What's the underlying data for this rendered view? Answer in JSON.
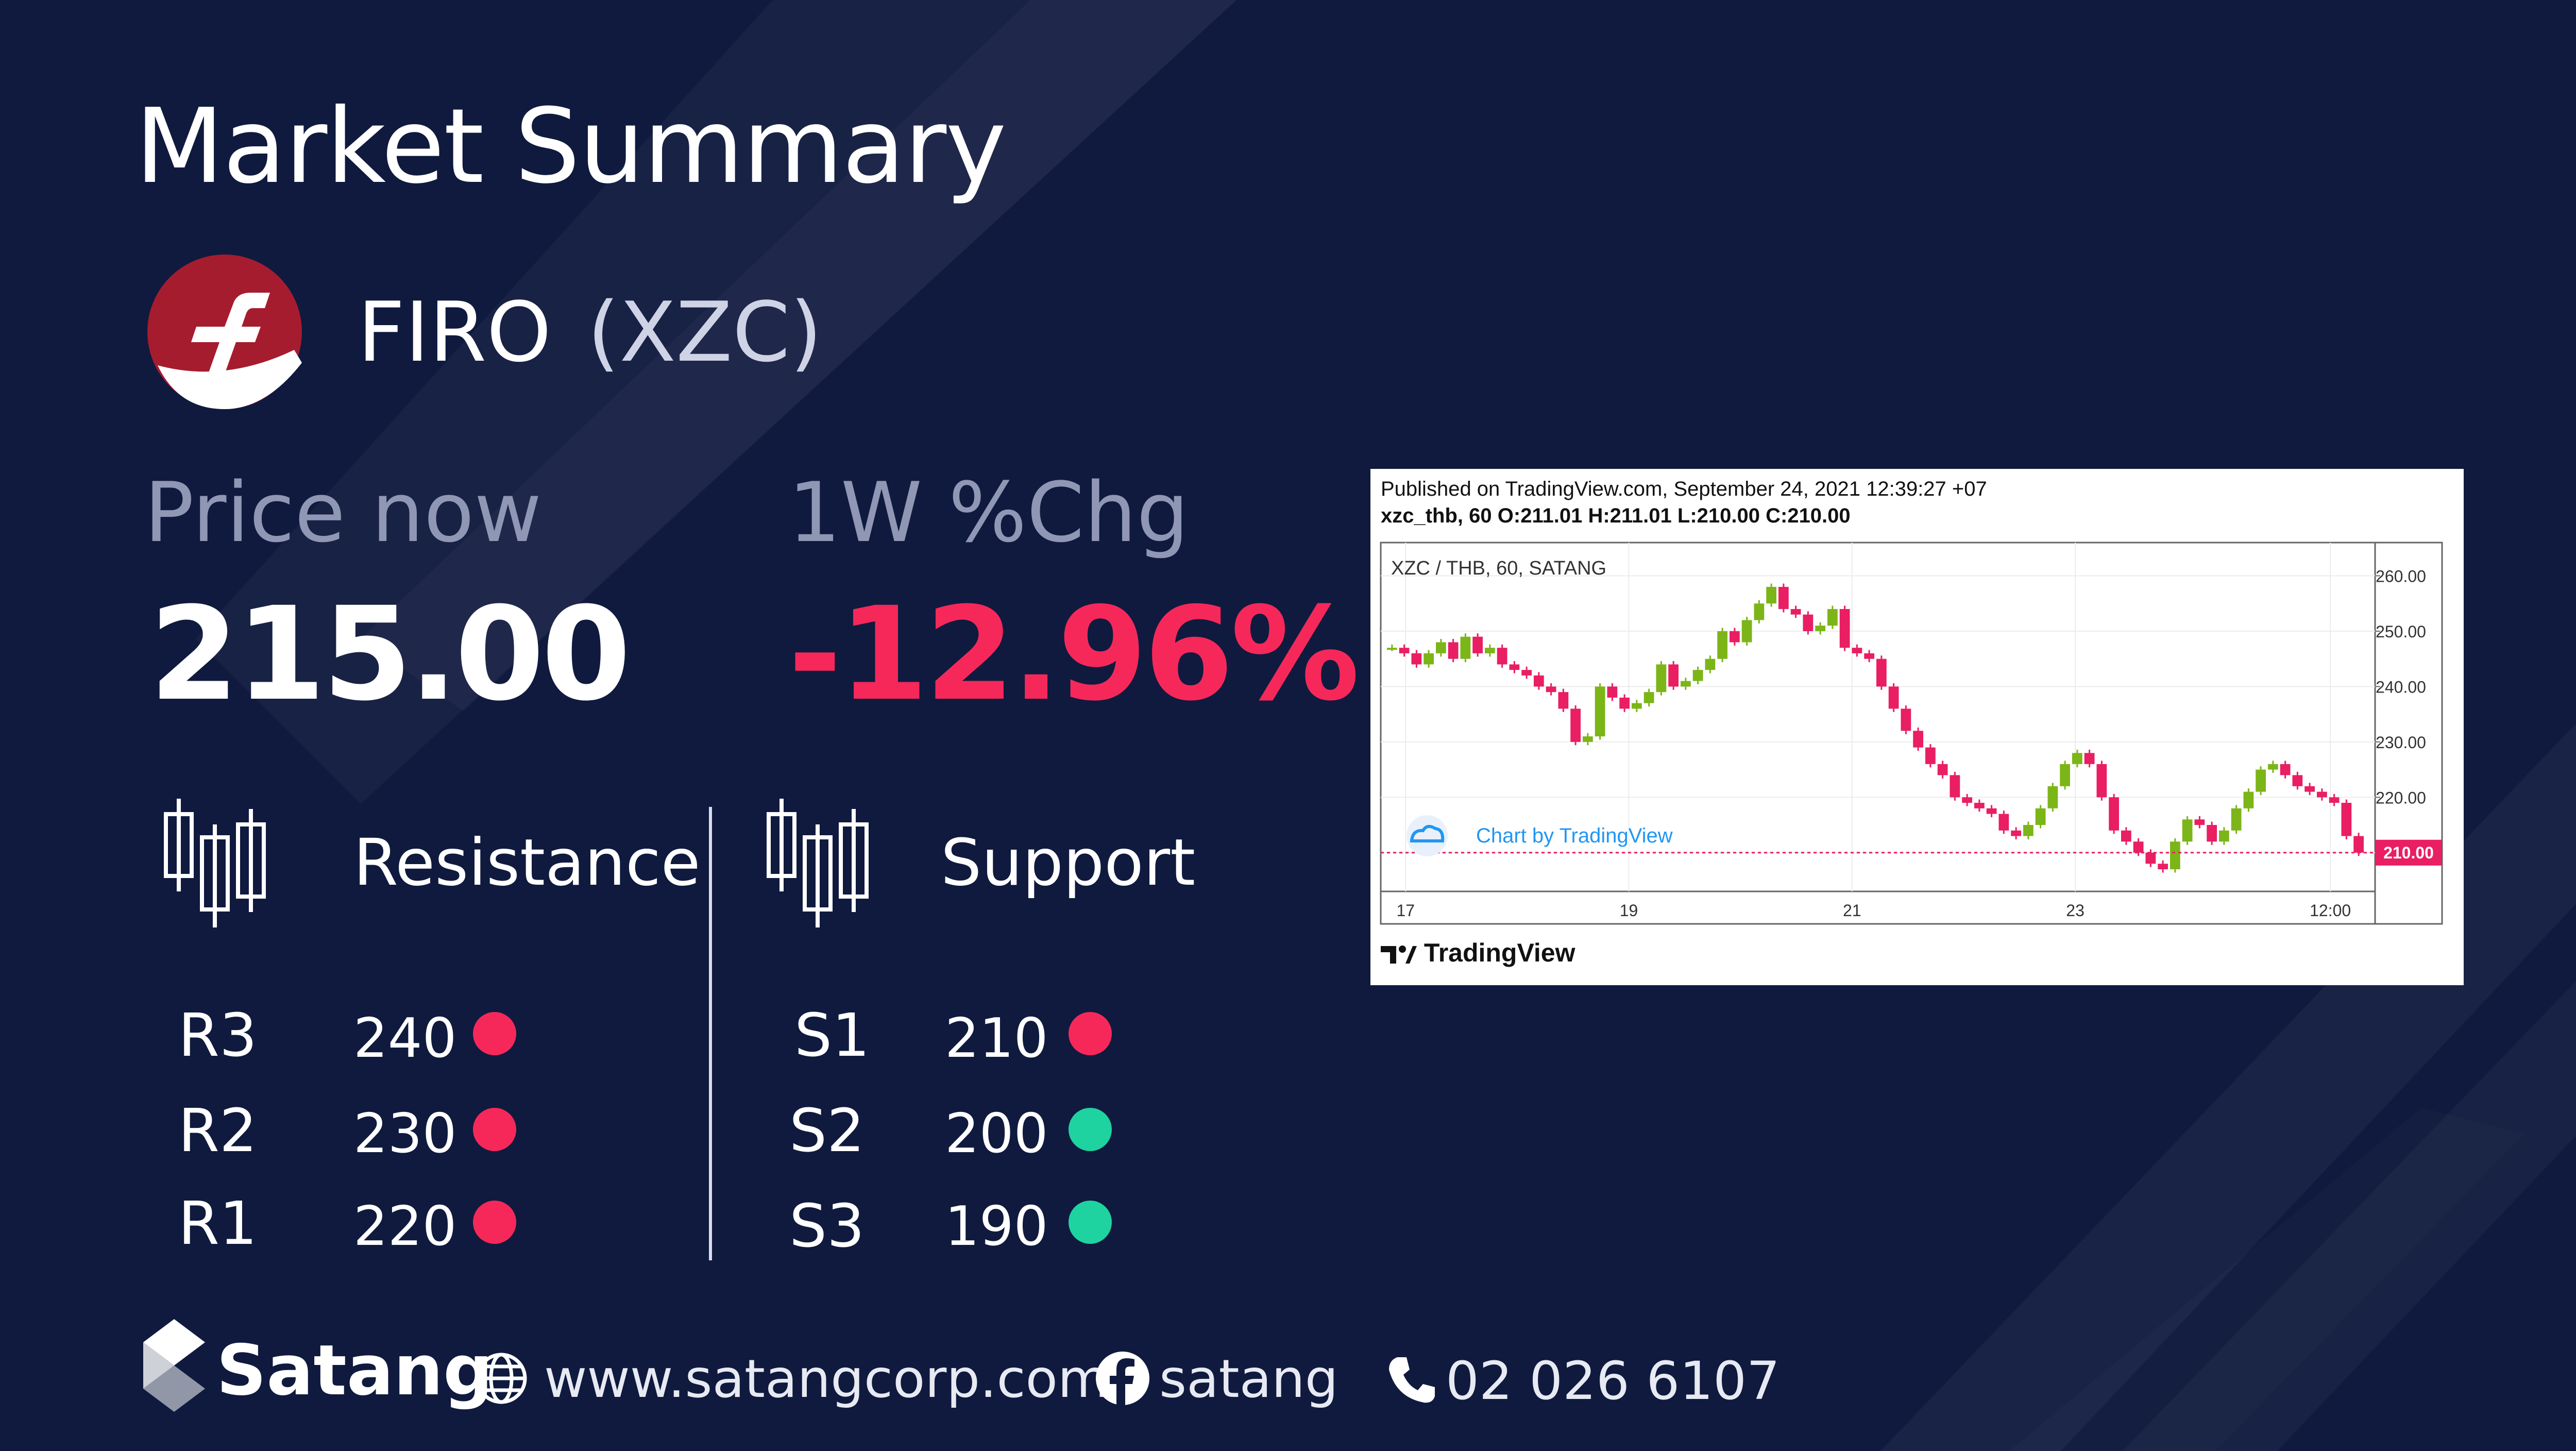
{
  "header": {
    "title": "Market Summary"
  },
  "coin": {
    "name": "FIRO",
    "symbol": "(XZC)",
    "logo_color": "#a61c2f"
  },
  "price": {
    "label": "Price now",
    "value": "215.00"
  },
  "change": {
    "label": "1W %Chg",
    "value": "-12.96%",
    "color": "#f6285a"
  },
  "resistance": {
    "title": "Resistance",
    "levels": [
      {
        "label": "R3",
        "value": "240",
        "status": "red"
      },
      {
        "label": "R2",
        "value": "230",
        "status": "red"
      },
      {
        "label": "R1",
        "value": "220",
        "status": "red"
      }
    ]
  },
  "support": {
    "title": "Support",
    "levels": [
      {
        "label": "S1",
        "value": "210",
        "status": "red"
      },
      {
        "label": "S2",
        "value": "200",
        "status": "green"
      },
      {
        "label": "S3",
        "value": "190",
        "status": "green"
      }
    ]
  },
  "colors": {
    "red": "#f6285a",
    "green": "#1ed3a0",
    "background": "#0f1a3e"
  },
  "chart": {
    "published": "Published on TradingView.com, September 24, 2021 12:39:27 +07",
    "ohlc": "xzc_thb, 60  O:211.01  H:211.01  L:210.00  C:210.00",
    "pair_label": "XZC / THB, 60, SATANG",
    "watermark": "Chart by TradingView",
    "footer": "TradingView",
    "last_price_label": "210.00"
  },
  "chart_data": {
    "type": "candlestick",
    "title": "XZC / THB, 60, SATANG",
    "x_ticks": [
      "17",
      "19",
      "21",
      "23",
      "12:00"
    ],
    "y_ticks": [
      "260.00",
      "250.00",
      "240.00",
      "230.00",
      "220.00",
      "210.00"
    ],
    "ylim": [
      203,
      266
    ],
    "last_price": 210.0,
    "ohlc": {
      "open": 211.01,
      "high": 211.01,
      "low": 210.0,
      "close": 210.0
    },
    "close_series": [
      247,
      246,
      244,
      246,
      248,
      245,
      249,
      246,
      247,
      244,
      243,
      242,
      240,
      239,
      236,
      230,
      231,
      240,
      238,
      236,
      237,
      239,
      244,
      240,
      241,
      243,
      245,
      250,
      248,
      252,
      255,
      258,
      254,
      253,
      250,
      251,
      254,
      247,
      246,
      245,
      240,
      236,
      232,
      229,
      226,
      224,
      220,
      219,
      218,
      217,
      214,
      213,
      215,
      218,
      222,
      226,
      228,
      226,
      220,
      214,
      212,
      210,
      208,
      207,
      212,
      216,
      215,
      212,
      214,
      218,
      221,
      225,
      226,
      224,
      222,
      221,
      220,
      219,
      213,
      210
    ]
  },
  "footer": {
    "brand": "Satang",
    "website": "www.satangcorp.com",
    "facebook": "satang",
    "phone": "02 026 6107"
  }
}
